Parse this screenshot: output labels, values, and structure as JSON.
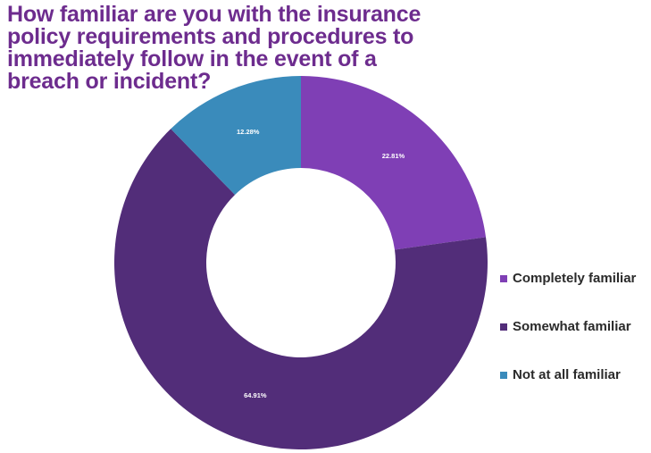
{
  "chart_data": {
    "type": "pie",
    "title": "How familiar are you with the insurance policy requirements and procedures to immediately follow in the event of a breach or incident?",
    "categories": [
      "Completely familiar",
      "Somewhat familiar",
      "Not at all familiar"
    ],
    "values": [
      22.81,
      64.91,
      12.28
    ],
    "labels": [
      "22.81%",
      "64.91%",
      "12.28%"
    ],
    "colors": [
      "#7f3fb5",
      "#522d79",
      "#3a8bbb"
    ],
    "donut": true,
    "legend": "right"
  }
}
